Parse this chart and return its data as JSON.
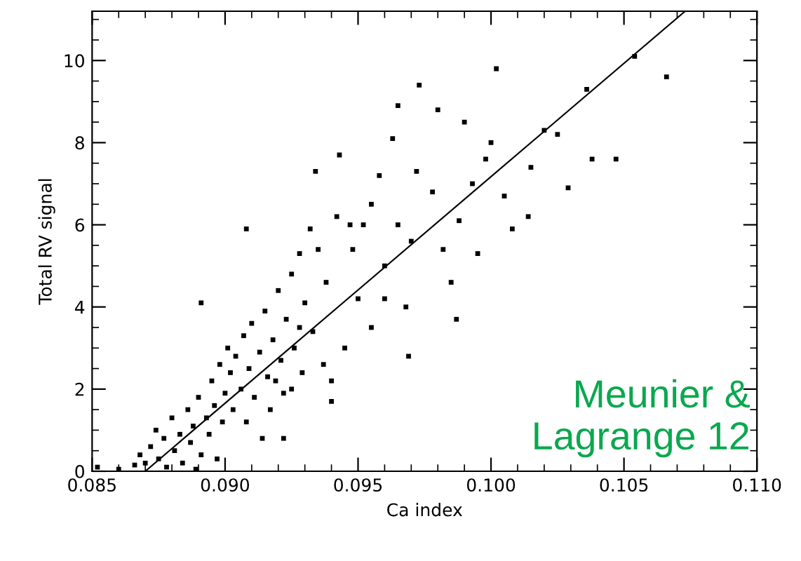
{
  "chart_data": {
    "type": "scatter",
    "xlabel": "Ca index",
    "ylabel": "Total RV signal",
    "annotations": [
      "Meunier &\nLagrange 12"
    ],
    "xlim": [
      0.085,
      0.11
    ],
    "xticks": [
      {
        "value": 0.085,
        "label": "0.085"
      },
      {
        "value": 0.09,
        "label": "0.090"
      },
      {
        "value": 0.095,
        "label": "0.095"
      },
      {
        "value": 0.1,
        "label": "0.100"
      },
      {
        "value": 0.105,
        "label": "0.105"
      },
      {
        "value": 0.11,
        "label": "0.110"
      }
    ],
    "ylim": [
      0,
      11.2
    ],
    "yticks": [
      0,
      2,
      4,
      6,
      8,
      10
    ],
    "grid": false,
    "legend": false,
    "marker": "square",
    "series": [
      {
        "color": "#000000",
        "x": [
          0.0852,
          0.086,
          0.0866,
          0.0868,
          0.087,
          0.0872,
          0.0874,
          0.0875,
          0.0877,
          0.0878,
          0.088,
          0.0881,
          0.0883,
          0.0884,
          0.0886,
          0.0887,
          0.0888,
          0.0889,
          0.089,
          0.0891,
          0.0893,
          0.0894,
          0.0895,
          0.0896,
          0.0897,
          0.0898,
          0.0899,
          0.09,
          0.0901,
          0.0902,
          0.0903,
          0.0904,
          0.0906,
          0.0907,
          0.0908,
          0.0909,
          0.091,
          0.0911,
          0.0913,
          0.0914,
          0.0915,
          0.0916,
          0.0917,
          0.0918,
          0.092,
          0.0921,
          0.0922,
          0.0923,
          0.0925,
          0.0926,
          0.0928,
          0.0929,
          0.093,
          0.0891,
          0.0908,
          0.0934,
          0.0943,
          0.0965,
          0.0973,
          0.1002,
          0.1054,
          0.1066,
          0.1047,
          0.1038,
          0.1036,
          0.0969,
          0.0987,
          0.094,
          0.0922,
          0.1014,
          0.1029,
          0.096,
          0.0965,
          0.097,
          0.0972,
          0.0978,
          0.0982,
          0.0988,
          0.099,
          0.0993,
          0.0995,
          0.0998,
          0.1,
          0.1005,
          0.1008,
          0.1015,
          0.102,
          0.1025,
          0.0985,
          0.0955,
          0.095,
          0.0952,
          0.0958,
          0.0948,
          0.0945,
          0.0942,
          0.0938,
          0.0935,
          0.0933,
          0.094,
          0.0937,
          0.0968,
          0.0963,
          0.098,
          0.0947,
          0.0955,
          0.096,
          0.0932,
          0.0928,
          0.0925,
          0.0919
        ],
        "values": [
          0.1,
          0.05,
          0.15,
          0.4,
          0.2,
          0.6,
          1.0,
          0.3,
          0.8,
          0.1,
          1.3,
          0.5,
          0.9,
          0.2,
          1.5,
          0.7,
          1.1,
          0.05,
          1.8,
          0.4,
          1.3,
          0.9,
          2.2,
          1.6,
          0.3,
          2.6,
          1.2,
          1.9,
          3.0,
          2.4,
          1.5,
          2.8,
          2.0,
          3.3,
          1.2,
          2.5,
          3.6,
          1.8,
          2.9,
          0.8,
          3.9,
          2.3,
          1.5,
          3.2,
          4.4,
          2.7,
          1.9,
          3.7,
          4.8,
          3.0,
          5.3,
          2.4,
          4.1,
          4.1,
          5.9,
          7.3,
          7.7,
          8.9,
          9.4,
          9.8,
          10.1,
          9.6,
          7.6,
          7.6,
          9.3,
          2.8,
          3.7,
          1.7,
          0.8,
          6.2,
          6.9,
          5.0,
          6.0,
          5.6,
          7.3,
          6.8,
          5.4,
          6.1,
          8.5,
          7.0,
          5.3,
          7.6,
          8.0,
          6.7,
          5.9,
          7.4,
          8.3,
          8.2,
          4.6,
          3.5,
          4.2,
          6.0,
          7.2,
          5.4,
          3.0,
          6.2,
          4.6,
          5.4,
          3.4,
          2.2,
          2.6,
          4.0,
          8.1,
          8.8,
          6.0,
          6.5,
          4.2,
          5.9,
          3.5,
          2.0,
          2.2
        ]
      },
      {
        "type": "line",
        "color": "#000000",
        "marker": "none",
        "x": [
          0.087,
          0.1073
        ],
        "values": [
          0,
          11.2
        ]
      }
    ]
  }
}
